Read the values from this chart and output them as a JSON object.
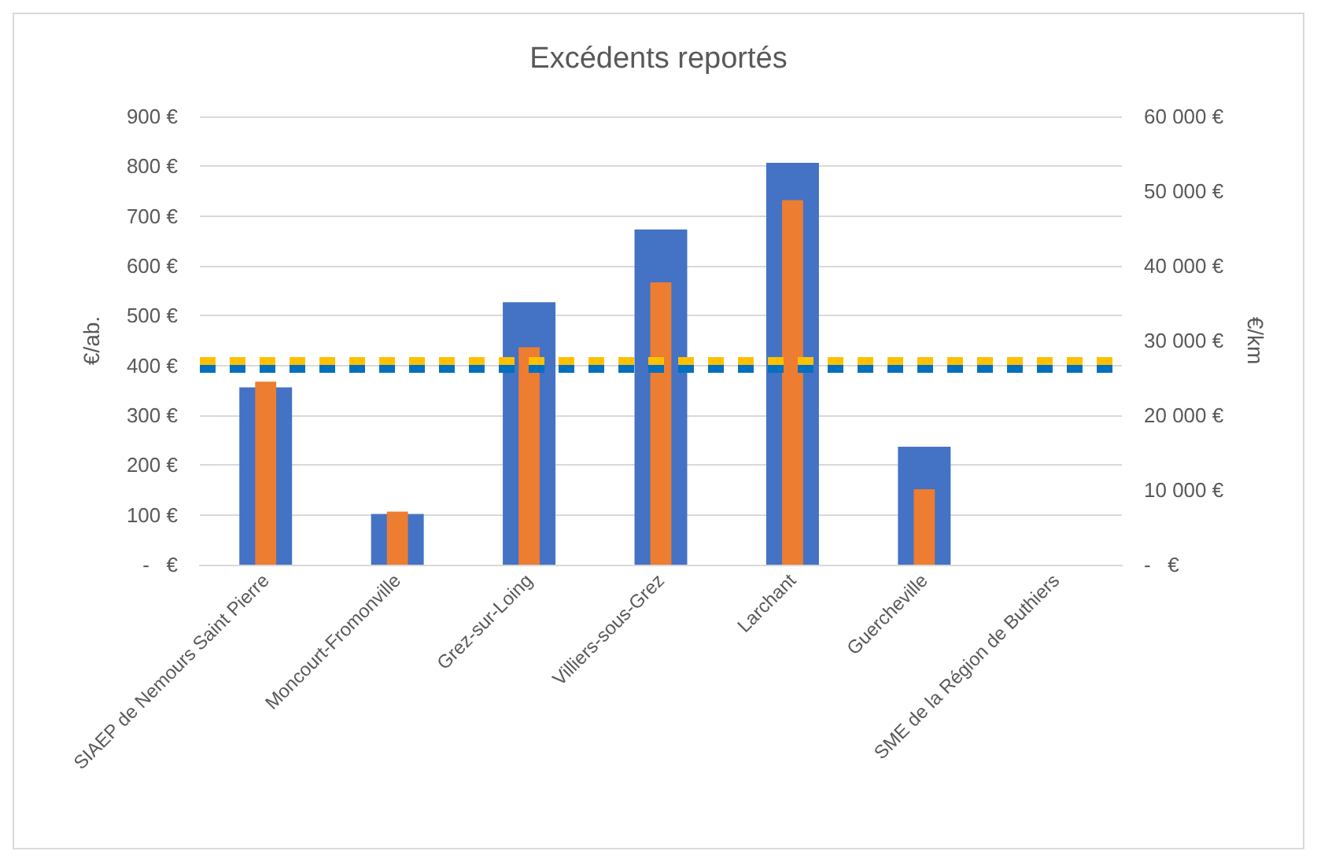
{
  "chart_data": {
    "type": "bar",
    "title": "Excédents reportés",
    "categories": [
      "SIAEP de Nemours Saint Pierre",
      "Moncourt-Fromonville",
      "Grez-sur-Loing",
      "Villiers-sous-Grez",
      "Larchant",
      "Guercheville",
      "SME de la Région de Buthiers"
    ],
    "series": [
      {
        "color": "#4472c4",
        "values": [
          356,
          102,
          527,
          673,
          807,
          237,
          null
        ]
      },
      {
        "color": "#ed7d31",
        "axis": "y2",
        "values": [
          24500,
          7100,
          29100,
          37800,
          48800,
          10100,
          null
        ]
      }
    ],
    "ylabel": "€/ab.",
    "y2label": "€/km",
    "ylim": [
      0,
      900
    ],
    "yticks": [
      {
        "value": 0,
        "label": "-   €"
      },
      {
        "value": 100,
        "label": "100 €"
      },
      {
        "value": 200,
        "label": "200 €"
      },
      {
        "value": 300,
        "label": "300 €"
      },
      {
        "value": 400,
        "label": "400 €"
      },
      {
        "value": 500,
        "label": "500 €"
      },
      {
        "value": 600,
        "label": "600 €"
      },
      {
        "value": 700,
        "label": "700 €"
      },
      {
        "value": 800,
        "label": "800 €"
      },
      {
        "value": 900,
        "label": "900 €"
      }
    ],
    "y2lim": [
      0,
      60000
    ],
    "y2ticks": [
      {
        "value": 0,
        "label": "-   €"
      },
      {
        "value": 10000,
        "label": "10 000 €"
      },
      {
        "value": 20000,
        "label": "20 000 €"
      },
      {
        "value": 30000,
        "label": "30 000 €"
      },
      {
        "value": 40000,
        "label": "40 000 €"
      },
      {
        "value": 50000,
        "label": "50 000 €"
      },
      {
        "value": 60000,
        "label": "60 000 €"
      }
    ],
    "ref_lines": [
      {
        "axis": "y",
        "value": 395,
        "color": "#0070c0",
        "line_style": "dashed"
      },
      {
        "axis": "y",
        "value": 410,
        "color": "#ffc000",
        "line_style": "dashed"
      }
    ],
    "grid": "y"
  }
}
